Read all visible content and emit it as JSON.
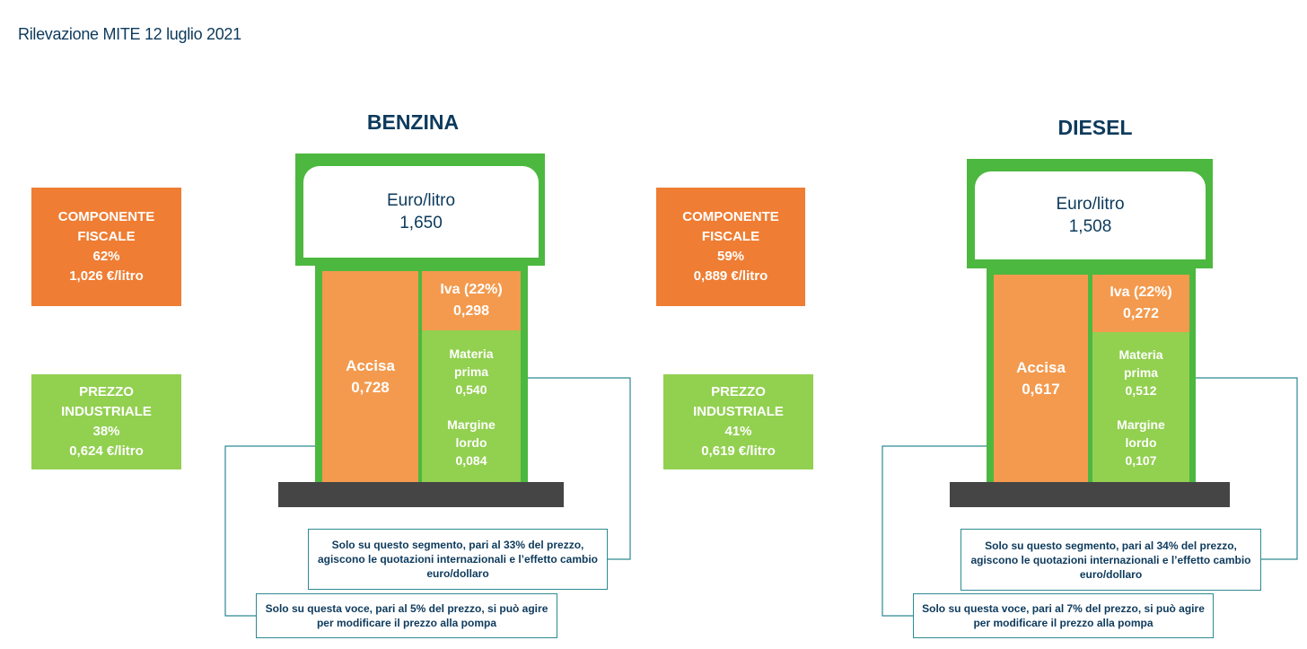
{
  "header": "Rilevazione MITE 12 luglio 2021",
  "benzina": {
    "title": "BENZINA",
    "screen_label": "Euro/litro",
    "screen_value": "1,650",
    "fiscale": {
      "l1": "COMPONENTE",
      "l2": "FISCALE",
      "pct": "62%",
      "value": "1,026 €/litro"
    },
    "industriale": {
      "l1": "PREZZO",
      "l2": "INDUSTRIALE",
      "pct": "38%",
      "value": "0,624 €/litro"
    },
    "accisa": {
      "label": "Accisa",
      "value": "0,728"
    },
    "iva": {
      "label": "Iva (22%)",
      "value": "0,298"
    },
    "materia": {
      "l1": "Materia",
      "l2": "prima",
      "value": "0,540"
    },
    "margine": {
      "l1": "Margine",
      "l2": "lordo",
      "value": "0,084"
    },
    "note_segment": {
      "l1": "Solo su questo segmento, pari al 33% del prezzo,",
      "l2": "agiscono le quotazioni internazionali e l’effetto cambio",
      "l3": "euro/dollaro"
    },
    "note_voce": {
      "l1": "Solo su questa voce, pari al 5% del prezzo, si può agire",
      "l2": "per modificare il prezzo alla pompa"
    }
  },
  "diesel": {
    "title": "DIESEL",
    "screen_label": "Euro/litro",
    "screen_value": "1,508",
    "fiscale": {
      "l1": "COMPONENTE",
      "l2": "FISCALE",
      "pct": "59%",
      "value": "0,889 €/litro"
    },
    "industriale": {
      "l1": "PREZZO",
      "l2": "INDUSTRIALE",
      "pct": "41%",
      "value": "0,619  €/litro"
    },
    "accisa": {
      "label": "Accisa",
      "value": "0,617"
    },
    "iva": {
      "label": "Iva (22%)",
      "value": "0,272"
    },
    "materia": {
      "l1": "Materia",
      "l2": "prima",
      "value": "0,512"
    },
    "margine": {
      "l1": "Margine",
      "l2": "lordo",
      "value": "0,107"
    },
    "note_segment": {
      "l1": "Solo su questo segmento, pari al 34% del prezzo,",
      "l2": "agiscono le quotazioni internazionali e l’effetto cambio",
      "l3": "euro/dollaro"
    },
    "note_voce": {
      "l1": "Solo su questa voce, pari al 7% del prezzo, si può agire",
      "l2": "per modificare il prezzo alla pompa"
    }
  },
  "colors": {
    "orange": "#ef7d33",
    "light_orange": "#f39a4e",
    "green": "#92d050",
    "pump_green": "#4cb83f",
    "navy": "#0d3a5c",
    "teal_line": "#2d8a91",
    "base": "#454545"
  }
}
